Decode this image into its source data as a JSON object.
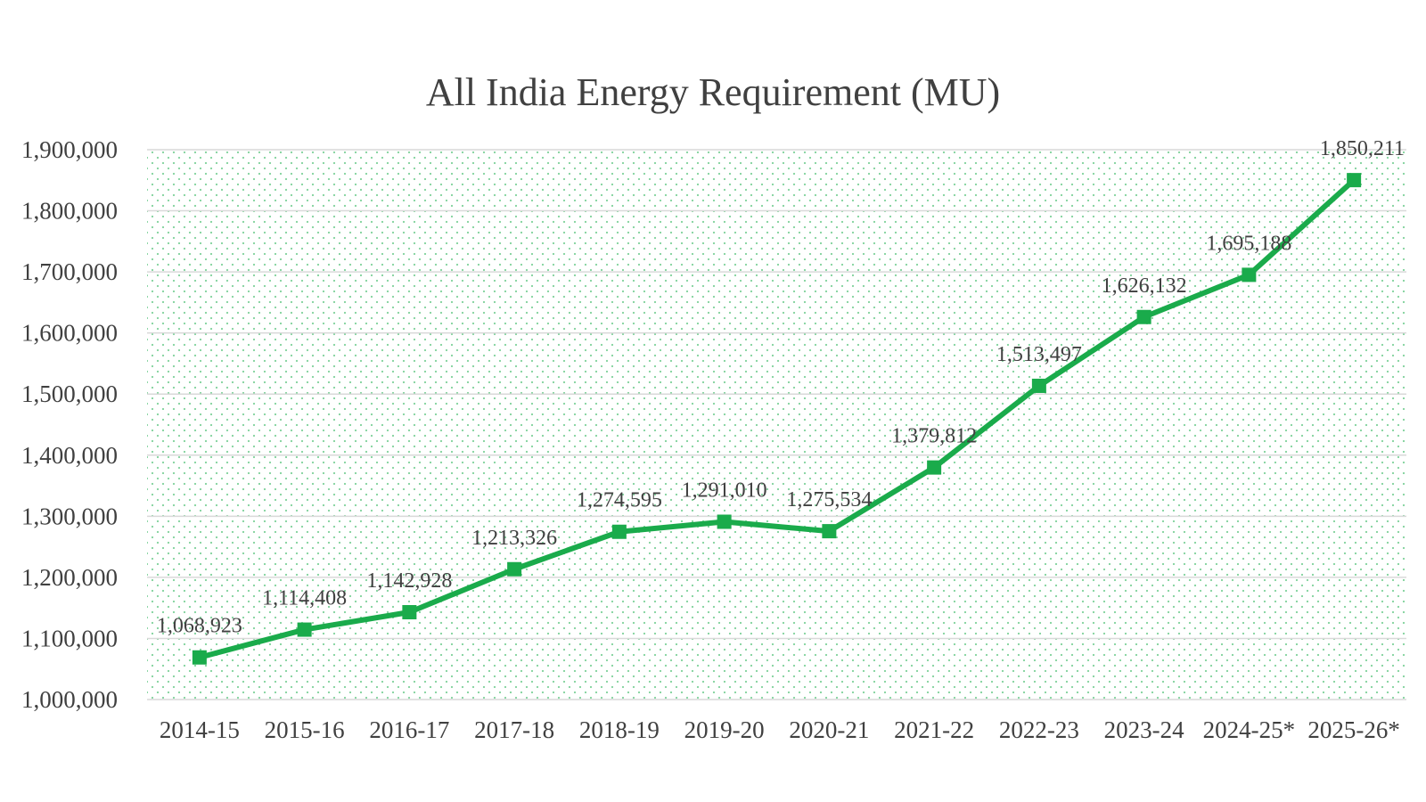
{
  "chart_data": {
    "type": "line",
    "title": "All India Energy Requirement (MU)",
    "xlabel": "",
    "ylabel": "",
    "categories": [
      "2014-15",
      "2015-16",
      "2016-17",
      "2017-18",
      "2018-19",
      "2019-20",
      "2020-21",
      "2021-22",
      "2022-23",
      "2023-24",
      "2024-25*",
      "2025-26*"
    ],
    "values": [
      1068923,
      1114408,
      1142928,
      1213326,
      1274595,
      1291010,
      1275534,
      1379812,
      1513497,
      1626132,
      1695188,
      1850211
    ],
    "data_labels": [
      "1,068,923",
      "1,114,408",
      "1,142,928",
      "1,213,326",
      "1,274,595",
      "1,291,010",
      "1,275,534",
      "1,379,812",
      "1,513,497",
      "1,626,132",
      "1,695,188",
      "1,850,211"
    ],
    "y_ticks": [
      "1,000,000",
      "1,100,000",
      "1,200,000",
      "1,300,000",
      "1,400,000",
      "1,500,000",
      "1,600,000",
      "1,700,000",
      "1,800,000",
      "1,900,000"
    ],
    "y_tick_values": [
      1000000,
      1100000,
      1200000,
      1300000,
      1400000,
      1500000,
      1600000,
      1700000,
      1800000,
      1900000
    ],
    "ylim": [
      1000000,
      1900000
    ],
    "grid": true,
    "legend": "none",
    "colors": {
      "series": "#1aab4b",
      "grid": "#d9d9d9",
      "plot_pattern": "#7fd19b"
    }
  }
}
